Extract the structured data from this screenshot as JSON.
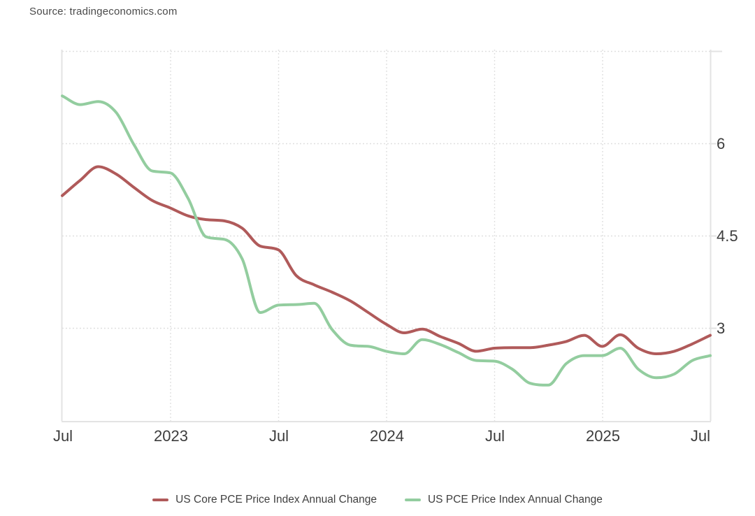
{
  "source": {
    "text": "Source: tradingeconomics.com"
  },
  "chart_data": {
    "type": "line",
    "title": "",
    "xlabel": "",
    "ylabel": "",
    "x_unit": "month",
    "months": [
      "Jul 2022",
      "Aug 2022",
      "Sep 2022",
      "Oct 2022",
      "Nov 2022",
      "Dec 2022",
      "Jan 2023",
      "Feb 2023",
      "Mar 2023",
      "Apr 2023",
      "May 2023",
      "Jun 2023",
      "Jul 2023",
      "Aug 2023",
      "Sep 2023",
      "Oct 2023",
      "Nov 2023",
      "Dec 2023",
      "Jan 2024",
      "Feb 2024",
      "Mar 2024",
      "Apr 2024",
      "May 2024",
      "Jun 2024",
      "Jul 2024",
      "Aug 2024",
      "Sep 2024",
      "Oct 2024",
      "Nov 2024",
      "Dec 2024",
      "Jan 2025",
      "Feb 2025",
      "Mar 2025",
      "Apr 2025",
      "May 2025",
      "Jun 2025",
      "Jul 2025"
    ],
    "x_tick_labels": [
      "Jul",
      "2023",
      "Jul",
      "2024",
      "Jul",
      "2025",
      "Jul"
    ],
    "x_tick_month_indices": [
      0,
      6,
      12,
      18,
      24,
      30,
      36
    ],
    "y_tick_labels": [
      "3",
      "4.5",
      "6"
    ],
    "y_tick_values": [
      3,
      4.5,
      6
    ],
    "y_gridline_values": [
      3,
      4.5,
      6,
      7.5
    ],
    "y_range_displayed": [
      1.5,
      7.5
    ],
    "grid": "dotted",
    "legend_position": "bottom-center",
    "axis_color": "#e3e3e3",
    "gridline_color": "#dcdcdc",
    "label_color": "#3d3d3d",
    "series": [
      {
        "name": "US Core PCE Price Index Annual Change",
        "color": "#b05a5a",
        "values": [
          5.15,
          5.4,
          5.62,
          5.5,
          5.28,
          5.07,
          4.95,
          4.82,
          4.76,
          4.74,
          4.62,
          4.33,
          4.27,
          3.85,
          3.7,
          3.58,
          3.44,
          3.25,
          3.06,
          2.92,
          2.98,
          2.86,
          2.75,
          2.62,
          2.67,
          2.68,
          2.68,
          2.72,
          2.78,
          2.88,
          2.7,
          2.89,
          2.67,
          2.58,
          2.62,
          2.74,
          2.88
        ]
      },
      {
        "name": "US PCE Price Index Annual Change",
        "color": "#93cd9f",
        "values": [
          6.77,
          6.63,
          6.68,
          6.5,
          5.97,
          5.55,
          5.52,
          5.1,
          4.48,
          4.44,
          4.12,
          3.25,
          3.37,
          3.38,
          3.4,
          2.97,
          2.72,
          2.7,
          2.62,
          2.58,
          2.81,
          2.73,
          2.6,
          2.47,
          2.46,
          2.33,
          2.1,
          2.07,
          2.42,
          2.55,
          2.55,
          2.67,
          2.33,
          2.19,
          2.25,
          2.47,
          2.55
        ]
      }
    ]
  }
}
